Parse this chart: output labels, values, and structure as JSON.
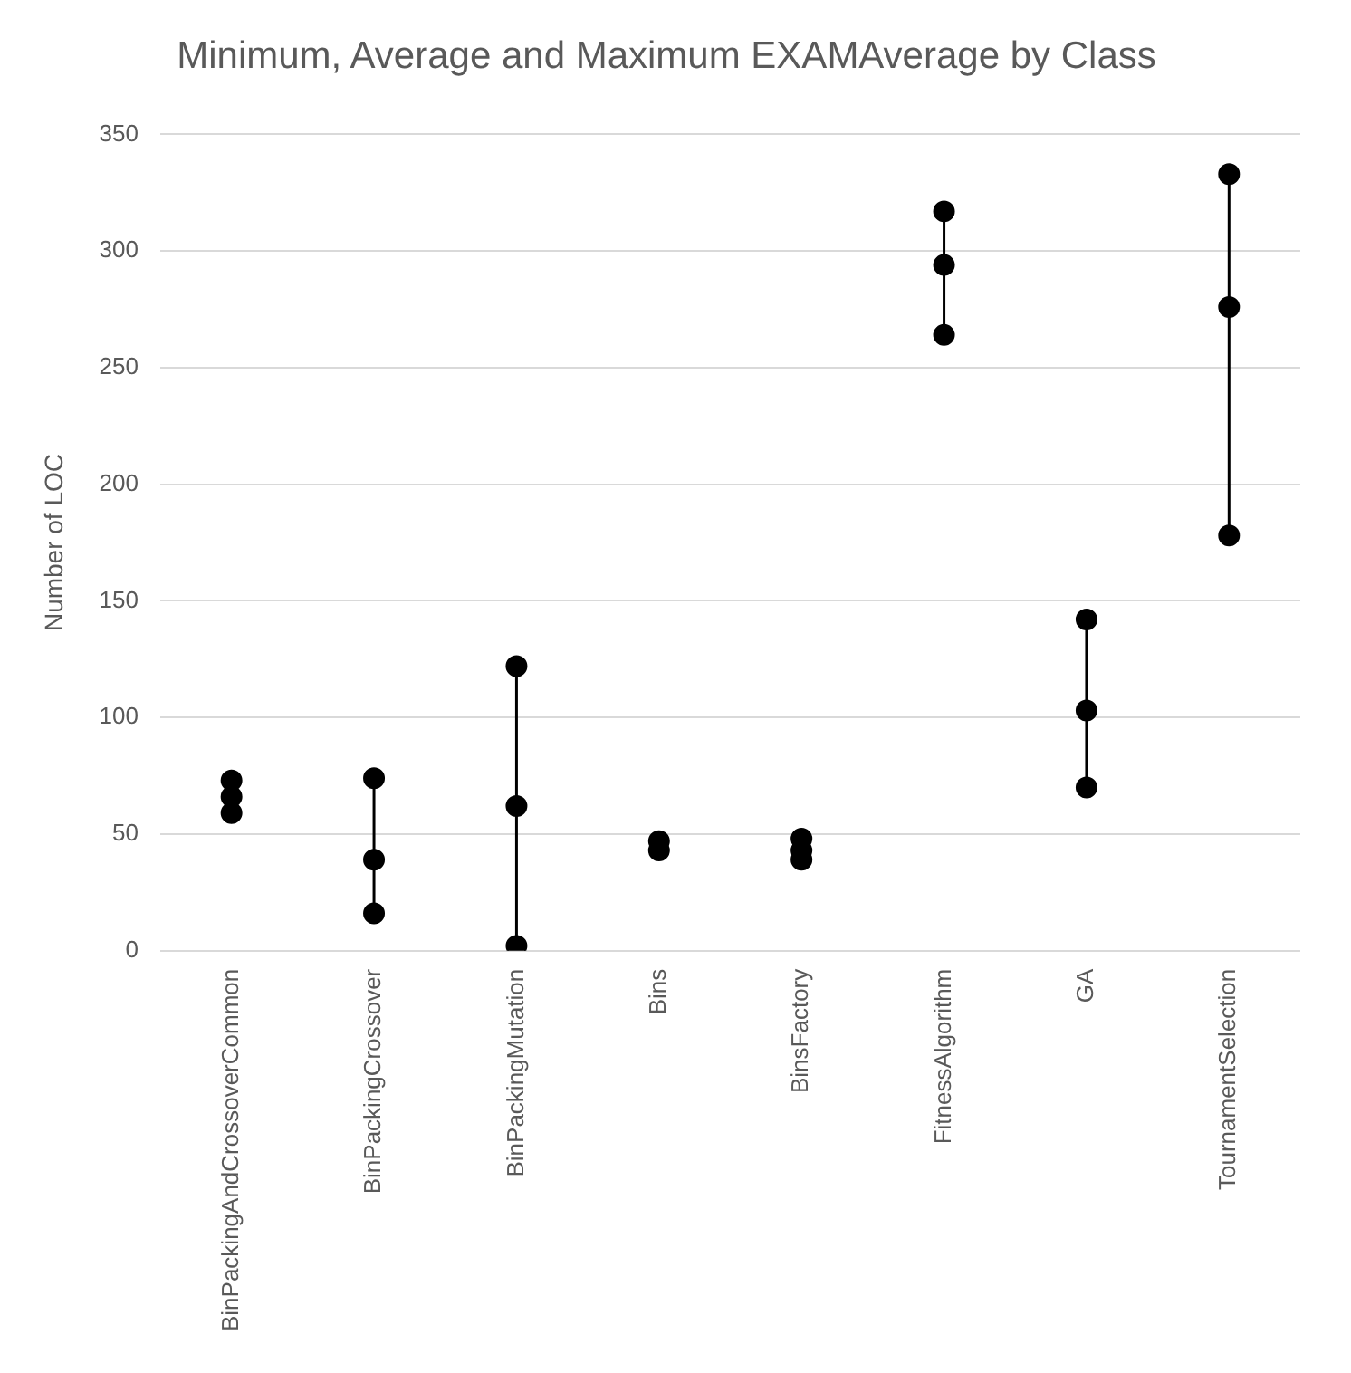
{
  "chart_data": {
    "type": "scatter",
    "title": "Minimum, Average and Maximum EXAMAverage by Class",
    "ylabel": "Number of LOC",
    "categories": [
      "BinPackingAndCrossoverCommon",
      "BinPackingCrossover",
      "BinPackingMutation",
      "Bins",
      "BinsFactory",
      "FitnessAlgorithm",
      "GA",
      "TournamentSelection"
    ],
    "series": [
      {
        "color": "#000000",
        "values": [
          73,
          74,
          122,
          47,
          48,
          317,
          142,
          333
        ]
      },
      {
        "color": "#000000",
        "values": [
          66,
          39,
          62,
          null,
          43,
          294,
          103,
          276
        ]
      },
      {
        "color": "#000000",
        "values": [
          59,
          16,
          2,
          43,
          39,
          264,
          70,
          178
        ]
      }
    ],
    "ylim": [
      0,
      350
    ],
    "yticks": [
      0,
      50,
      100,
      150,
      200,
      250,
      300,
      350
    ],
    "grid": "y",
    "marker": "circle",
    "legend": false
  }
}
